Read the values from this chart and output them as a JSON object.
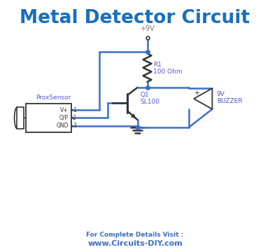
{
  "title": "Metal Detector Circuit",
  "title_color": "#1a6fba",
  "title_fontsize": 19,
  "line_color": "#3a6fc4",
  "line_width": 1.8,
  "component_color": "#333333",
  "label_color": "#5555cc",
  "footer_bold": "For Complete Details Visit :",
  "footer_url": "www.Circuits-DIY.com",
  "footer_color": "#3a6fc4",
  "bg_color": "#ffffff",
  "supply_label_color": "#777777"
}
